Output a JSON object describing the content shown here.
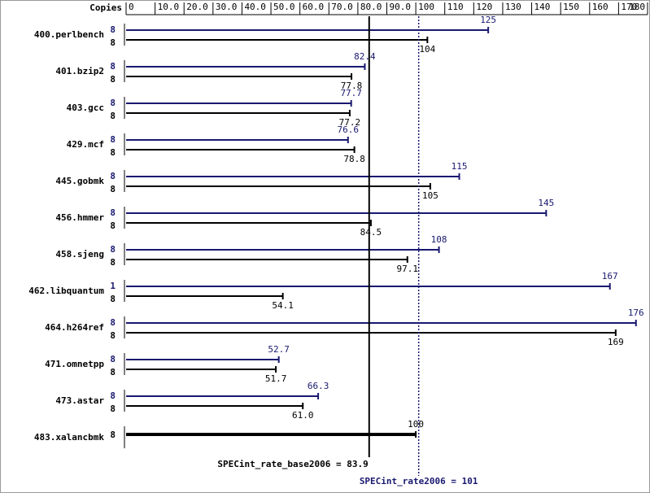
{
  "chart_data": {
    "type": "bar",
    "orientation": "horizontal",
    "copies_label": "Copies",
    "categories": [
      "400.perlbench",
      "401.bzip2",
      "403.gcc",
      "429.mcf",
      "445.gobmk",
      "456.hmmer",
      "458.sjeng",
      "462.libquantum",
      "464.h264ref",
      "471.omnetpp",
      "473.astar",
      "483.xalancbmk"
    ],
    "series": [
      {
        "color": "#191970",
        "copies": [
          8,
          8,
          8,
          8,
          8,
          8,
          8,
          1,
          8,
          8,
          8,
          null
        ],
        "values": [
          125,
          82.4,
          77.7,
          76.6,
          115,
          145,
          108,
          167,
          176,
          52.7,
          66.3,
          null
        ]
      },
      {
        "color": "#000000",
        "copies": [
          8,
          8,
          8,
          8,
          8,
          8,
          8,
          8,
          8,
          8,
          8,
          8
        ],
        "values": [
          104,
          77.8,
          77.2,
          78.8,
          105,
          84.5,
          97.1,
          54.1,
          169,
          51.7,
          61,
          100
        ],
        "value_labels": [
          "104",
          "77.8",
          "77.2",
          "78.8",
          "105",
          "84.5",
          "97.1",
          "54.1",
          "169",
          "51.7",
          "61.0",
          "100"
        ]
      }
    ],
    "xlim": [
      0,
      180
    ],
    "xticks": [
      0,
      {
        "value": 10,
        "label": "10.0"
      },
      {
        "value": 20,
        "label": "20.0"
      },
      {
        "value": 30,
        "label": "30.0"
      },
      {
        "value": 40,
        "label": "40.0"
      },
      {
        "value": 50,
        "label": "50.0"
      },
      {
        "value": 60,
        "label": "60.0"
      },
      {
        "value": 70,
        "label": "70.0"
      },
      {
        "value": 80,
        "label": "80.0"
      },
      {
        "value": 90,
        "label": "90.0"
      },
      100,
      110,
      120,
      130,
      140,
      150,
      160,
      170,
      180
    ],
    "reference_lines": [
      {
        "label": "SPECint_rate_base2006 = 83.9",
        "value": 83.9,
        "color": "#000000"
      },
      {
        "label": "SPECint_rate2006 = 101",
        "value": 101,
        "color": "#191970"
      }
    ]
  }
}
